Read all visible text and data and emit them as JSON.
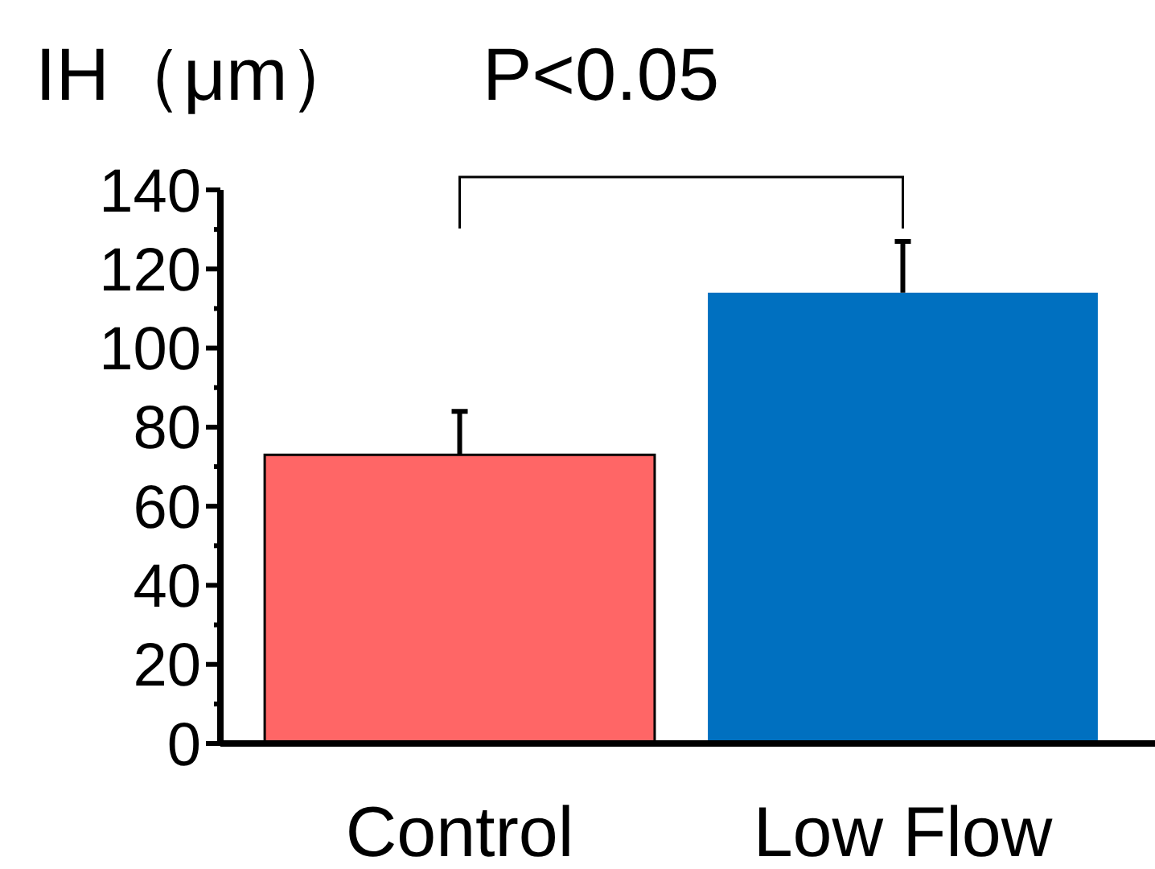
{
  "chart_data": {
    "type": "bar",
    "title": "IH（μm）",
    "annotations": [
      "P<0.05"
    ],
    "categories": [
      "Control",
      "Low Flow"
    ],
    "values": [
      73,
      114
    ],
    "colors": [
      "#ff6666",
      "#0070c0"
    ],
    "errors": [
      [
        73,
        84
      ],
      [
        114,
        127
      ]
    ],
    "ylim": [
      0,
      140
    ],
    "yticks": [
      0,
      {
        "value": 10,
        "label": null
      },
      20,
      {
        "value": 30,
        "label": null
      },
      40,
      {
        "value": 50,
        "label": null
      },
      60,
      {
        "value": 70,
        "label": null
      },
      80,
      {
        "value": 90,
        "label": null
      },
      100,
      {
        "value": 110,
        "label": null
      },
      120,
      {
        "value": 130,
        "label": null
      },
      140
    ],
    "grid": false
  }
}
